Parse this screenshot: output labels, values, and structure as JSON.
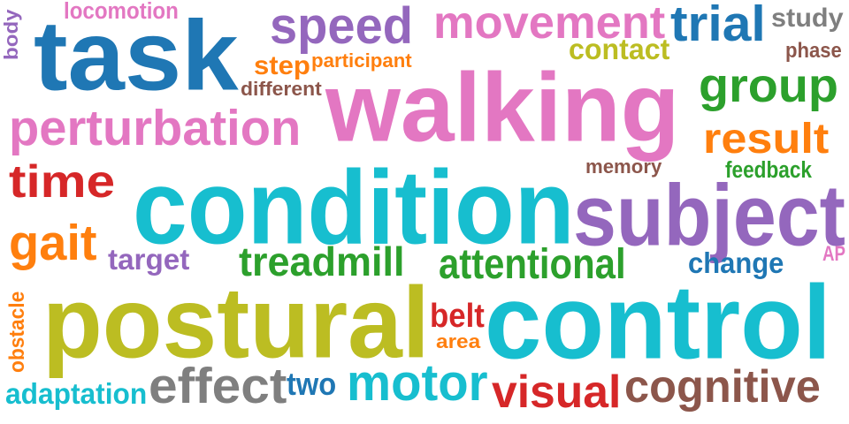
{
  "words": [
    {
      "text": "task",
      "color": "#1f77b4"
    },
    {
      "text": "walking",
      "color": "#e377c2"
    },
    {
      "text": "condition",
      "color": "#17becf"
    },
    {
      "text": "subject",
      "color": "#9467bd"
    },
    {
      "text": "postural",
      "color": "#bcbd22"
    },
    {
      "text": "control",
      "color": "#17becf"
    },
    {
      "text": "speed",
      "color": "#9467bd"
    },
    {
      "text": "movement",
      "color": "#e377c2"
    },
    {
      "text": "trial",
      "color": "#1f77b4"
    },
    {
      "text": "study",
      "color": "#7f7f7f"
    },
    {
      "text": "perturbation",
      "color": "#e377c2"
    },
    {
      "text": "group",
      "color": "#2ca02c"
    },
    {
      "text": "result",
      "color": "#ff7f0e"
    },
    {
      "text": "time",
      "color": "#d62728"
    },
    {
      "text": "gait",
      "color": "#ff7f0e"
    },
    {
      "text": "treadmill",
      "color": "#2ca02c"
    },
    {
      "text": "attentional",
      "color": "#2ca02c"
    },
    {
      "text": "effect",
      "color": "#7f7f7f"
    },
    {
      "text": "motor",
      "color": "#17becf"
    },
    {
      "text": "visual",
      "color": "#d62728"
    },
    {
      "text": "cognitive",
      "color": "#8c564b"
    },
    {
      "text": "adaptation",
      "color": "#17becf"
    },
    {
      "text": "two",
      "color": "#1f77b4"
    },
    {
      "text": "belt",
      "color": "#d62728"
    },
    {
      "text": "area",
      "color": "#ff7f0e"
    },
    {
      "text": "change",
      "color": "#1f77b4"
    },
    {
      "text": "target",
      "color": "#9467bd"
    },
    {
      "text": "locomotion",
      "color": "#e377c2"
    },
    {
      "text": "contact",
      "color": "#bcbd22"
    },
    {
      "text": "phase",
      "color": "#8c564b"
    },
    {
      "text": "step",
      "color": "#ff7f0e"
    },
    {
      "text": "participant",
      "color": "#ff7f0e"
    },
    {
      "text": "different",
      "color": "#8c564b"
    },
    {
      "text": "memory",
      "color": "#8c564b"
    },
    {
      "text": "feedback",
      "color": "#2ca02c"
    },
    {
      "text": "AP",
      "color": "#e377c2"
    },
    {
      "text": "body",
      "color": "#9467bd"
    },
    {
      "text": "obstacle",
      "color": "#ff7f0e"
    }
  ]
}
